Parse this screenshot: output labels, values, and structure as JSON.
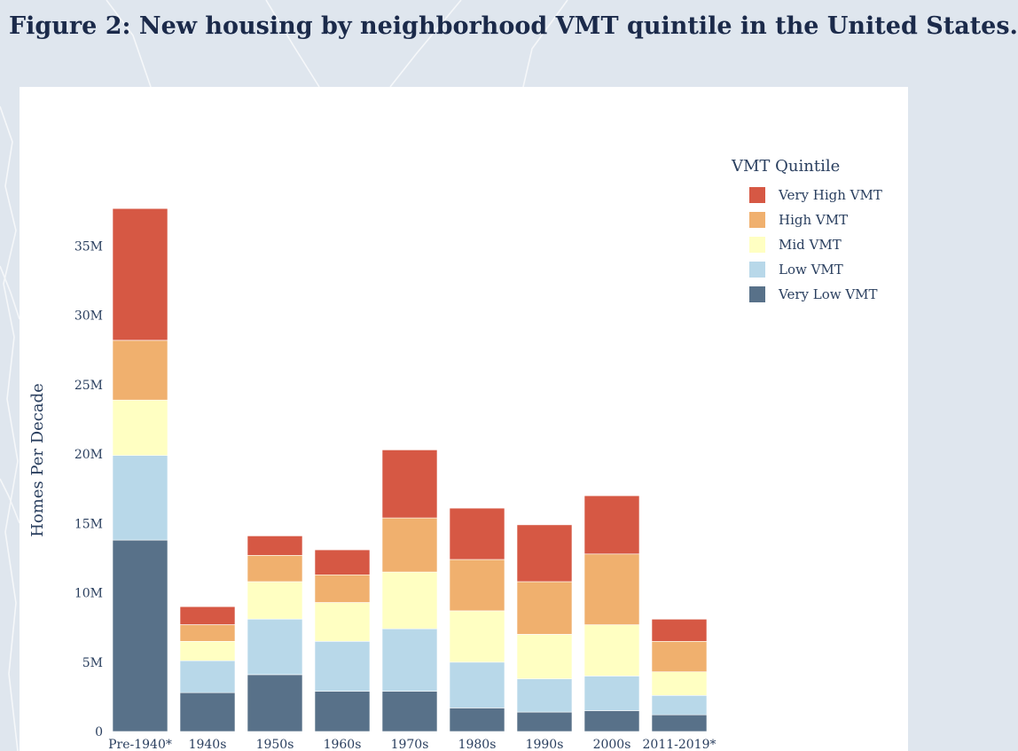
{
  "figure": {
    "title": "Figure 2: New housing by neighborhood VMT quintile in the United States."
  },
  "chart_data": {
    "type": "bar",
    "stacked": true,
    "categories": [
      "Pre-1940*",
      "1940s",
      "1950s",
      "1960s",
      "1970s",
      "1980s",
      "1990s",
      "2000s",
      "2011-2019*"
    ],
    "series": [
      {
        "name": "Very Low VMT",
        "color": "#587189",
        "values": [
          13.8,
          2.8,
          4.1,
          2.9,
          2.9,
          1.7,
          1.4,
          1.5,
          1.2
        ]
      },
      {
        "name": "Low VMT",
        "color": "#b8d8e9",
        "values": [
          6.1,
          2.3,
          4.0,
          3.6,
          4.5,
          3.3,
          2.4,
          2.5,
          1.4
        ]
      },
      {
        "name": "Mid VMT",
        "color": "#ffffc2",
        "values": [
          4.0,
          1.4,
          2.7,
          2.8,
          4.1,
          3.7,
          3.2,
          3.7,
          1.7
        ]
      },
      {
        "name": "High VMT",
        "color": "#f0b06e",
        "values": [
          4.3,
          1.2,
          1.9,
          2.0,
          3.9,
          3.7,
          3.8,
          5.1,
          2.2
        ]
      },
      {
        "name": "Very High VMT",
        "color": "#d65844",
        "values": [
          9.5,
          1.3,
          1.4,
          1.8,
          4.9,
          3.7,
          4.1,
          4.2,
          1.6
        ]
      }
    ],
    "legend_order": [
      "Very High VMT",
      "High VMT",
      "Mid VMT",
      "Low VMT",
      "Very Low VMT"
    ],
    "legend_title": "VMT Quintile",
    "legend_position": "top-right",
    "ylabel": "Homes Per Decade",
    "xlabel": "",
    "yticks": [
      {
        "value": 0,
        "label": "0"
      },
      {
        "value": 5,
        "label": "5M"
      },
      {
        "value": 10,
        "label": "10M"
      },
      {
        "value": 15,
        "label": "15M"
      },
      {
        "value": 20,
        "label": "20M"
      },
      {
        "value": 25,
        "label": "25M"
      },
      {
        "value": 30,
        "label": "30M"
      },
      {
        "value": 35,
        "label": "35M"
      }
    ],
    "ylim": [
      0,
      40.4
    ],
    "units": "millions of homes",
    "grid": false
  }
}
